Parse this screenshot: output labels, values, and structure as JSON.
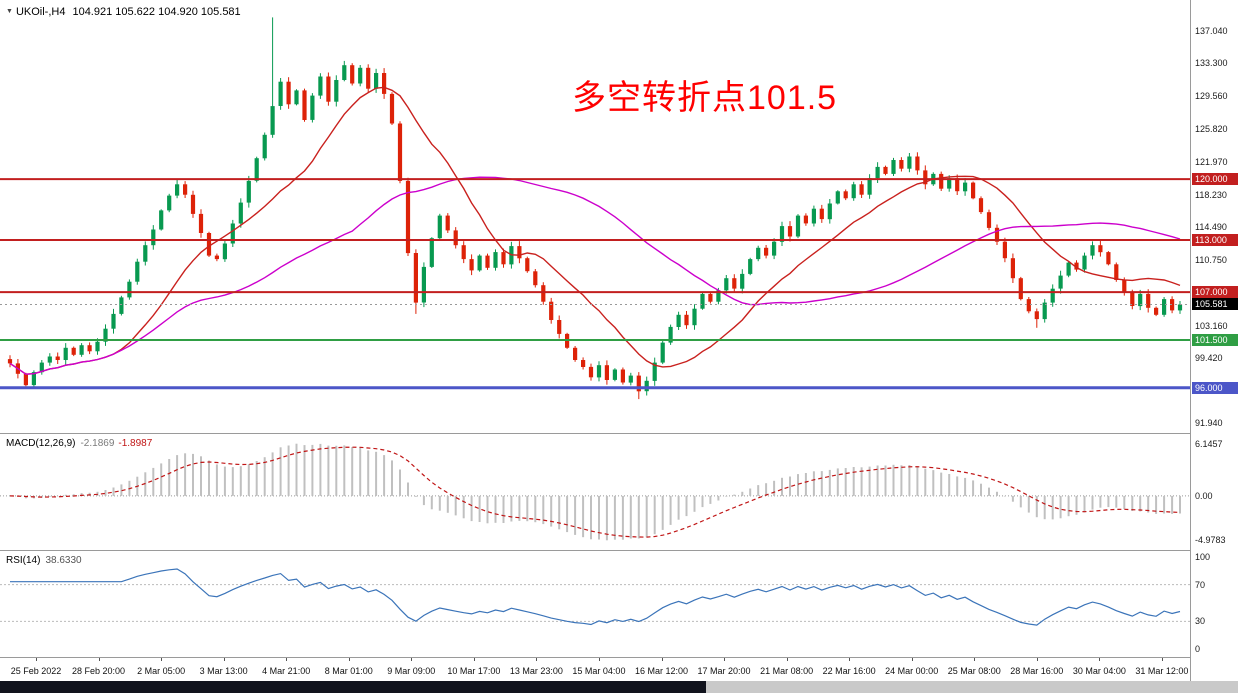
{
  "window": {
    "symbol_header": {
      "collapse_icon": "▼",
      "title": "UKOil-,H4",
      "ohlc": "104.921 105.622 104.920 105.581"
    },
    "annotation": {
      "text": "多空转折点101.5",
      "color": "#ff0000"
    }
  },
  "chart_data": {
    "type": "candlestick",
    "symbol": "UKOil-",
    "timeframe": "H4",
    "price_axis": {
      "min": 90.8,
      "max": 140.6,
      "ticks": [
        {
          "v": 137.04,
          "t": "137.040"
        },
        {
          "v": 133.3,
          "t": "133.300"
        },
        {
          "v": 129.56,
          "t": "129.560"
        },
        {
          "v": 125.82,
          "t": "125.820"
        },
        {
          "v": 121.97,
          "t": "121.970"
        },
        {
          "v": 118.23,
          "t": "118.230"
        },
        {
          "v": 114.49,
          "t": "114.490"
        },
        {
          "v": 110.75,
          "t": "110.750"
        },
        {
          "v": 103.16,
          "t": "103.160"
        },
        {
          "v": 99.42,
          "t": "99.420"
        },
        {
          "v": 91.94,
          "t": "91.940"
        }
      ]
    },
    "closes": [
      98.8,
      97.6,
      96.3,
      97.8,
      98.9,
      99.6,
      99.2,
      100.6,
      99.8,
      100.9,
      100.2,
      101.3,
      102.8,
      104.5,
      106.4,
      108.2,
      110.5,
      112.4,
      114.2,
      116.4,
      118.1,
      119.4,
      118.2,
      116.0,
      113.8,
      111.2,
      110.8,
      112.6,
      114.9,
      117.3,
      119.8,
      122.4,
      125.1,
      128.4,
      131.2,
      128.6,
      130.2,
      126.8,
      129.6,
      131.8,
      128.9,
      131.4,
      133.1,
      131.0,
      132.8,
      130.4,
      132.2,
      129.8,
      126.4,
      119.8,
      111.5,
      105.8,
      109.9,
      113.2,
      115.8,
      114.1,
      112.4,
      110.8,
      109.5,
      111.2,
      109.8,
      111.6,
      110.2,
      112.3,
      110.9,
      109.4,
      107.8,
      105.9,
      103.8,
      102.2,
      100.6,
      99.2,
      98.4,
      97.2,
      98.6,
      96.9,
      98.1,
      96.6,
      97.4,
      95.6,
      96.8,
      98.9,
      101.2,
      103.0,
      104.4,
      103.2,
      105.1,
      106.8,
      105.9,
      107.2,
      108.6,
      107.4,
      109.1,
      110.8,
      112.1,
      111.2,
      112.8,
      114.6,
      113.4,
      115.8,
      114.9,
      116.6,
      115.4,
      117.2,
      118.6,
      117.8,
      119.4,
      118.2,
      120.1,
      121.4,
      120.6,
      122.2,
      121.2,
      122.6,
      121.0,
      119.4,
      120.6,
      118.9,
      120.1,
      118.6,
      119.6,
      117.8,
      116.2,
      114.4,
      112.8,
      110.9,
      108.6,
      106.2,
      104.8,
      103.9,
      105.8,
      107.4,
      108.9,
      110.4,
      109.6,
      111.2,
      112.4,
      111.6,
      110.2,
      108.4,
      106.9,
      105.4,
      106.8,
      105.2,
      104.4,
      106.2,
      104.9,
      105.581
    ],
    "high_overrides": {
      "21": 119.9,
      "33": 138.6,
      "42": 133.6
    },
    "low_overrides": {
      "51": 104.5,
      "79": 94.7,
      "129": 102.9
    },
    "candle_up_color": "#089950",
    "candle_down_color": "#dd2208",
    "moving_averages": [
      {
        "period": 14,
        "color": "#c9211e"
      },
      {
        "period": 44,
        "color": "#cc00cc"
      }
    ],
    "horizontal_lines": [
      {
        "price": 120.0,
        "label": "120.000",
        "color": "#c21f1f",
        "width": 2
      },
      {
        "price": 113.0,
        "label": "113.000",
        "color": "#c21f1f",
        "width": 2
      },
      {
        "price": 107.0,
        "label": "107.000",
        "color": "#c21f1f",
        "width": 2
      },
      {
        "price": 101.5,
        "label": "101.500",
        "color": "#2f9e44",
        "width": 2
      },
      {
        "price": 96.0,
        "label": "96.000",
        "color": "#4c56c8",
        "width": 3
      }
    ],
    "current_price": {
      "value": 105.581,
      "label": "105.581",
      "box_color": "#000000"
    },
    "time_labels": [
      "25 Feb 2022",
      "28 Feb 20:00",
      "2 Mar 05:00",
      "3 Mar 13:00",
      "4 Mar 21:00",
      "8 Mar 01:00",
      "9 Mar 09:00",
      "10 Mar 17:00",
      "13 Mar 23:00",
      "15 Mar 04:00",
      "16 Mar 12:00",
      "17 Mar 20:00",
      "21 Mar 08:00",
      "22 Mar 16:00",
      "24 Mar 00:00",
      "25 Mar 08:00",
      "28 Mar 16:00",
      "30 Mar 04:00",
      "31 Mar 12:00"
    ],
    "macd": {
      "label": "MACD(12,26,9)",
      "value_main": "-2.1869",
      "value_signal": "-1.8987",
      "fast": 12,
      "slow": 26,
      "signal": 9,
      "axis_labels": [
        "6.1457",
        "0.00",
        "-4.9783"
      ],
      "histogram_color": "#c0c0c0",
      "signal_color": "#c01515"
    },
    "rsi": {
      "label": "RSI(14)",
      "value": "38.6330",
      "period": 14,
      "axis_labels": [
        "100",
        "70",
        "30",
        "0"
      ],
      "levels": [
        70,
        30
      ],
      "line_color": "#3b74b9"
    }
  }
}
